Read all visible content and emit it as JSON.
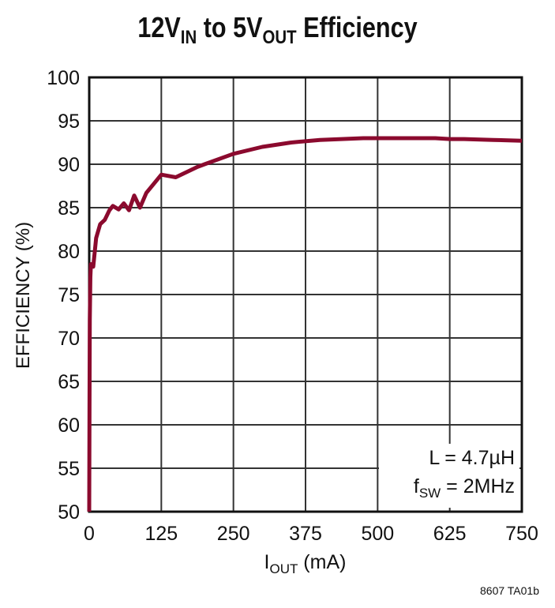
{
  "chart_data": {
    "type": "line",
    "title": {
      "main1": "12V",
      "sub1": "IN",
      "main2": " to 5V",
      "sub2": "OUT",
      "main3": " Efficiency"
    },
    "xlabel": {
      "main": "I",
      "sub": "OUT",
      "rest": " (mA)"
    },
    "ylabel": "EFFICIENCY (%)",
    "xlim": [
      0,
      750
    ],
    "ylim": [
      50,
      100
    ],
    "xticks": [
      0,
      125,
      250,
      375,
      500,
      625,
      750
    ],
    "yticks": [
      50,
      55,
      60,
      65,
      70,
      75,
      80,
      85,
      90,
      95,
      100
    ],
    "grid": true,
    "color": "#8b0a2e",
    "x": [
      0,
      0.5,
      1,
      2,
      3,
      7,
      12,
      19,
      27,
      35,
      41,
      51,
      60,
      69,
      78,
      88,
      99,
      125,
      150,
      188,
      200,
      250,
      300,
      350,
      400,
      475,
      550,
      600,
      625,
      650,
      700,
      750
    ],
    "y": [
      50,
      62,
      72,
      77,
      78.5,
      78.2,
      81.5,
      83.1,
      83.6,
      84.7,
      85.2,
      84.8,
      85.5,
      84.7,
      86.4,
      85,
      86.7,
      88.8,
      88.5,
      89.7,
      90,
      91.2,
      92,
      92.5,
      92.8,
      93,
      93,
      93,
      92.9,
      92.9,
      92.8,
      92.7
    ],
    "annotation": {
      "line1": "L = 4.7µH",
      "f": "f",
      "fsub": "SW",
      "line2rest": " = 2MHz"
    }
  },
  "footer": "8607 TA01b"
}
